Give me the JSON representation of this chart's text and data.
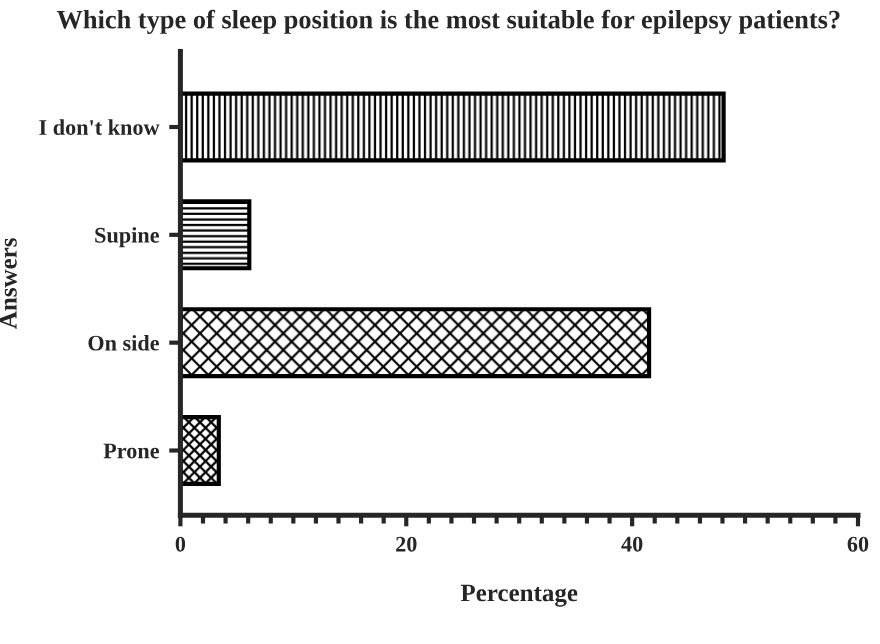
{
  "chart_data": {
    "type": "bar",
    "orientation": "horizontal",
    "title": "Which type of sleep position is the most suitable for epilepsy patients?",
    "xlabel": "Percentage",
    "ylabel": "Answers",
    "categories": [
      "I don't know",
      "Supine",
      "On side",
      "Prone"
    ],
    "values": [
      48.1,
      6.1,
      41.5,
      3.4
    ],
    "color": "#000000",
    "xlim": [
      0,
      60
    ],
    "xticks": [
      0,
      20,
      40,
      60
    ],
    "grid": false
  }
}
